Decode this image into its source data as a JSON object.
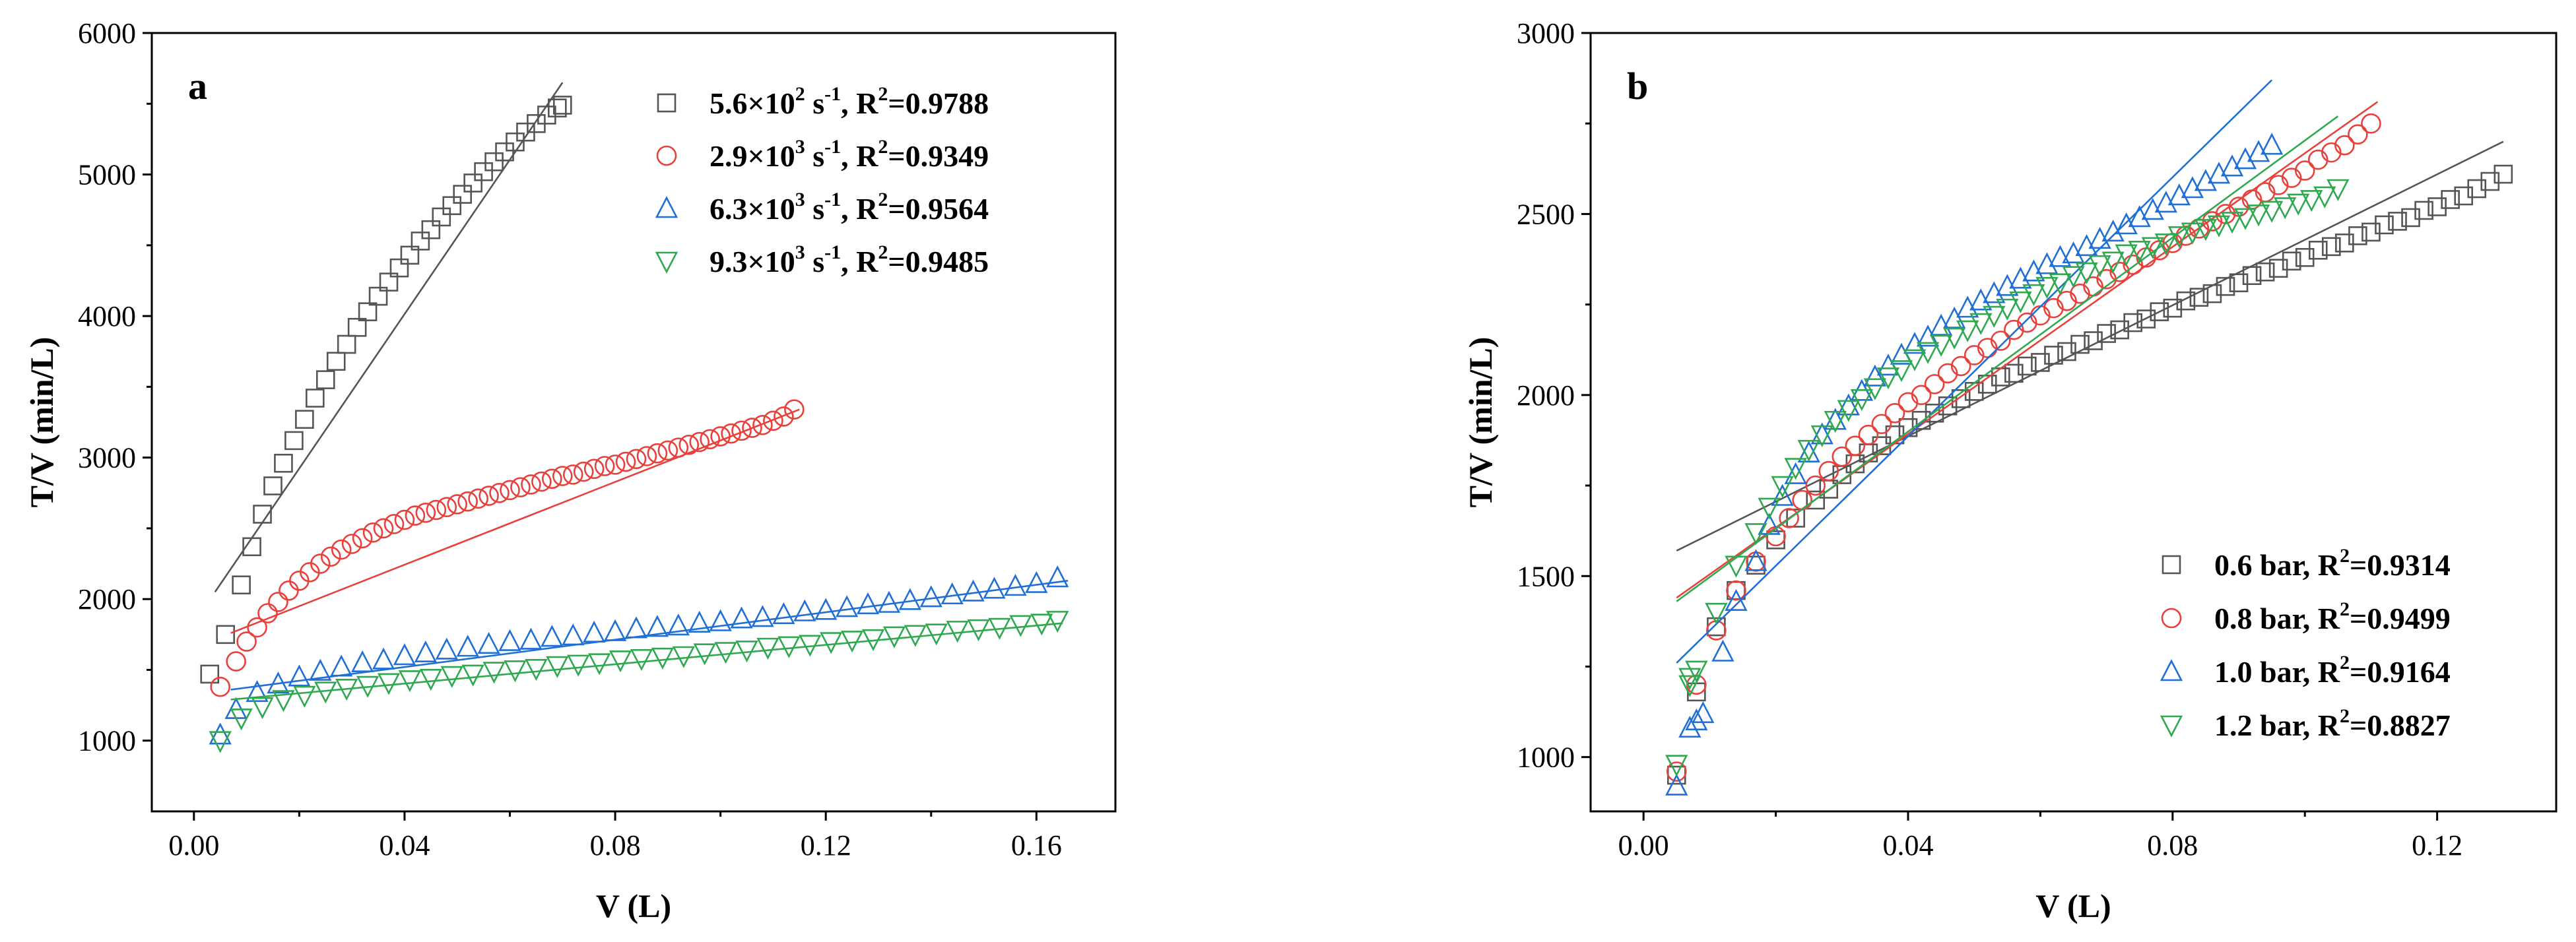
{
  "chart_data": [
    {
      "type": "scatter",
      "panel_label": "a",
      "xlabel": "V (L)",
      "ylabel": "T/V (min/L)",
      "xlim": [
        -0.008,
        0.175
      ],
      "ylim": [
        500,
        6000
      ],
      "xticks": [
        0.0,
        0.04,
        0.08,
        0.12,
        0.16
      ],
      "xtick_labels": [
        "0.00",
        "0.04",
        "0.08",
        "0.12",
        "0.16"
      ],
      "yticks": [
        1000,
        2000,
        3000,
        4000,
        5000,
        6000
      ],
      "ytick_labels": [
        "1000",
        "2000",
        "3000",
        "4000",
        "5000",
        "6000"
      ],
      "legend_position": "top-right",
      "series": [
        {
          "name": "5.6×10² s⁻¹, R²=0.9788",
          "legend": {
            "base": "5.6×10",
            "exp": "2",
            "unit": " s",
            "unit_exp": "-1",
            "r2": ", R",
            "r2_exp": "2",
            "value": "=0.9788"
          },
          "marker": "square",
          "color": "#555555",
          "x": [
            0.003,
            0.006,
            0.009,
            0.011,
            0.013,
            0.015,
            0.017,
            0.019,
            0.021,
            0.023,
            0.025,
            0.027,
            0.029,
            0.031,
            0.033,
            0.035,
            0.037,
            0.039,
            0.041,
            0.043,
            0.045,
            0.047,
            0.049,
            0.051,
            0.053,
            0.055,
            0.057,
            0.059,
            0.061,
            0.063,
            0.065,
            0.067,
            0.069,
            0.07
          ],
          "y": [
            1470,
            1750,
            2100,
            2370,
            2600,
            2800,
            2960,
            3120,
            3270,
            3420,
            3550,
            3680,
            3800,
            3920,
            4030,
            4140,
            4240,
            4340,
            4430,
            4530,
            4610,
            4700,
            4780,
            4860,
            4940,
            5020,
            5090,
            5160,
            5230,
            5300,
            5360,
            5420,
            5470,
            5490
          ],
          "fit": {
            "x": [
              0.004,
              0.07
            ],
            "y": [
              2050,
              5650
            ]
          }
        },
        {
          "name": "2.9×10³ s⁻¹, R²=0.9349",
          "legend": {
            "base": "2.9×10",
            "exp": "3",
            "unit": " s",
            "unit_exp": "-1",
            "r2": ", R",
            "r2_exp": "2",
            "value": "=0.9349"
          },
          "marker": "circle",
          "color": "#e8413c",
          "x": [
            0.005,
            0.008,
            0.01,
            0.012,
            0.014,
            0.016,
            0.018,
            0.02,
            0.022,
            0.024,
            0.026,
            0.028,
            0.03,
            0.032,
            0.034,
            0.036,
            0.038,
            0.04,
            0.042,
            0.044,
            0.046,
            0.048,
            0.05,
            0.052,
            0.054,
            0.056,
            0.058,
            0.06,
            0.062,
            0.064,
            0.066,
            0.068,
            0.07,
            0.072,
            0.074,
            0.076,
            0.078,
            0.08,
            0.082,
            0.084,
            0.086,
            0.088,
            0.09,
            0.092,
            0.094,
            0.096,
            0.098,
            0.1,
            0.102,
            0.104,
            0.106,
            0.108,
            0.11,
            0.112,
            0.114
          ],
          "y": [
            1380,
            1560,
            1700,
            1800,
            1900,
            1980,
            2060,
            2130,
            2190,
            2250,
            2300,
            2350,
            2390,
            2430,
            2470,
            2500,
            2530,
            2560,
            2590,
            2610,
            2630,
            2650,
            2670,
            2690,
            2710,
            2730,
            2750,
            2770,
            2790,
            2810,
            2830,
            2850,
            2870,
            2880,
            2900,
            2920,
            2940,
            2950,
            2970,
            2990,
            3010,
            3030,
            3050,
            3070,
            3090,
            3110,
            3130,
            3150,
            3170,
            3190,
            3210,
            3230,
            3260,
            3290,
            3340
          ],
          "fit": {
            "x": [
              0.007,
              0.115
            ],
            "y": [
              1760,
              3340
            ]
          }
        },
        {
          "name": "6.3×10³ s⁻¹, R²=0.9564",
          "legend": {
            "base": "6.3×10",
            "exp": "3",
            "unit": " s",
            "unit_exp": "-1",
            "r2": ", R",
            "r2_exp": "2",
            "value": "=0.9564"
          },
          "marker": "triangle-up",
          "color": "#1f6fd6",
          "x": [
            0.005,
            0.008,
            0.012,
            0.016,
            0.02,
            0.024,
            0.028,
            0.032,
            0.036,
            0.04,
            0.044,
            0.048,
            0.052,
            0.056,
            0.06,
            0.064,
            0.068,
            0.072,
            0.076,
            0.08,
            0.084,
            0.088,
            0.092,
            0.096,
            0.1,
            0.104,
            0.108,
            0.112,
            0.116,
            0.12,
            0.124,
            0.128,
            0.132,
            0.136,
            0.14,
            0.144,
            0.148,
            0.152,
            0.156,
            0.16,
            0.164
          ],
          "y": [
            1040,
            1220,
            1340,
            1400,
            1450,
            1490,
            1520,
            1550,
            1570,
            1600,
            1620,
            1640,
            1660,
            1680,
            1700,
            1710,
            1730,
            1740,
            1760,
            1770,
            1790,
            1800,
            1810,
            1830,
            1840,
            1860,
            1870,
            1890,
            1910,
            1920,
            1940,
            1960,
            1970,
            1990,
            2010,
            2030,
            2050,
            2070,
            2090,
            2110,
            2150
          ],
          "fit": {
            "x": [
              0.007,
              0.166
            ],
            "y": [
              1360,
              2130
            ]
          }
        },
        {
          "name": "9.3×10³ s⁻¹, R²=0.9485",
          "legend": {
            "base": "9.3×10",
            "exp": "3",
            "unit": " s",
            "unit_exp": "-1",
            "r2": ", R",
            "r2_exp": "2",
            "value": "=0.9485"
          },
          "marker": "triangle-down",
          "color": "#2fa84f",
          "x": [
            0.005,
            0.009,
            0.013,
            0.017,
            0.021,
            0.025,
            0.029,
            0.033,
            0.037,
            0.041,
            0.045,
            0.049,
            0.053,
            0.057,
            0.061,
            0.065,
            0.069,
            0.073,
            0.077,
            0.081,
            0.085,
            0.089,
            0.093,
            0.097,
            0.101,
            0.105,
            0.109,
            0.113,
            0.117,
            0.121,
            0.125,
            0.129,
            0.133,
            0.137,
            0.141,
            0.145,
            0.149,
            0.153,
            0.157,
            0.161,
            0.164
          ],
          "y": [
            1000,
            1160,
            1240,
            1290,
            1320,
            1350,
            1370,
            1390,
            1410,
            1430,
            1440,
            1460,
            1470,
            1490,
            1500,
            1510,
            1530,
            1540,
            1550,
            1570,
            1580,
            1590,
            1600,
            1620,
            1630,
            1640,
            1660,
            1670,
            1680,
            1700,
            1710,
            1720,
            1740,
            1750,
            1760,
            1780,
            1790,
            1800,
            1820,
            1830,
            1850
          ],
          "fit": {
            "x": [
              0.007,
              0.165
            ],
            "y": [
              1290,
              1830
            ]
          }
        }
      ]
    },
    {
      "type": "scatter",
      "panel_label": "b",
      "xlabel": "V (L)",
      "ylabel": "T/V (min/L)",
      "xlim": [
        -0.008,
        0.138
      ],
      "ylim": [
        850,
        3000
      ],
      "xticks": [
        0.0,
        0.04,
        0.08,
        0.12
      ],
      "xtick_labels": [
        "0.00",
        "0.04",
        "0.08",
        "0.12"
      ],
      "yticks": [
        1000,
        1500,
        2000,
        2500,
        3000
      ],
      "ytick_labels": [
        "1000",
        "1500",
        "2000",
        "2500",
        "3000"
      ],
      "legend_position": "bottom-right",
      "series": [
        {
          "name": "0.6 bar, R²=0.9314",
          "legend": {
            "base": "0.6 bar",
            "r2": ", R",
            "r2_exp": "2",
            "value": "=0.9314"
          },
          "marker": "square",
          "color": "#555555",
          "x": [
            0.005,
            0.008,
            0.011,
            0.014,
            0.017,
            0.02,
            0.023,
            0.026,
            0.028,
            0.03,
            0.032,
            0.034,
            0.036,
            0.038,
            0.04,
            0.042,
            0.044,
            0.046,
            0.048,
            0.05,
            0.052,
            0.054,
            0.056,
            0.058,
            0.06,
            0.062,
            0.064,
            0.066,
            0.068,
            0.07,
            0.072,
            0.074,
            0.076,
            0.078,
            0.08,
            0.082,
            0.084,
            0.086,
            0.088,
            0.09,
            0.092,
            0.094,
            0.096,
            0.098,
            0.1,
            0.102,
            0.104,
            0.106,
            0.108,
            0.11,
            0.112,
            0.114,
            0.116,
            0.118,
            0.12,
            0.122,
            0.124,
            0.126,
            0.128,
            0.13
          ],
          "y": [
            950,
            1180,
            1360,
            1460,
            1530,
            1600,
            1660,
            1710,
            1740,
            1780,
            1810,
            1840,
            1860,
            1890,
            1910,
            1930,
            1950,
            1970,
            1990,
            2010,
            2030,
            2050,
            2060,
            2080,
            2090,
            2110,
            2120,
            2140,
            2150,
            2170,
            2180,
            2200,
            2210,
            2230,
            2240,
            2260,
            2270,
            2280,
            2300,
            2310,
            2330,
            2340,
            2350,
            2370,
            2380,
            2400,
            2410,
            2420,
            2440,
            2450,
            2470,
            2480,
            2490,
            2510,
            2520,
            2540,
            2550,
            2570,
            2590,
            2610
          ],
          "fit": {
            "x": [
              0.005,
              0.13
            ],
            "y": [
              1570,
              2700
            ]
          }
        },
        {
          "name": "0.8 bar, R²=0.9499",
          "legend": {
            "base": "0.8 bar",
            "r2": ", R",
            "r2_exp": "2",
            "value": "=0.9499"
          },
          "marker": "circle",
          "color": "#e8413c",
          "x": [
            0.005,
            0.008,
            0.011,
            0.014,
            0.017,
            0.02,
            0.022,
            0.024,
            0.026,
            0.028,
            0.03,
            0.032,
            0.034,
            0.036,
            0.038,
            0.04,
            0.042,
            0.044,
            0.046,
            0.048,
            0.05,
            0.052,
            0.054,
            0.056,
            0.058,
            0.06,
            0.062,
            0.064,
            0.066,
            0.068,
            0.07,
            0.072,
            0.074,
            0.076,
            0.078,
            0.08,
            0.082,
            0.084,
            0.086,
            0.088,
            0.09,
            0.092,
            0.094,
            0.096,
            0.098,
            0.1,
            0.102,
            0.104,
            0.106,
            0.108,
            0.11
          ],
          "y": [
            960,
            1200,
            1350,
            1460,
            1540,
            1610,
            1660,
            1710,
            1750,
            1790,
            1830,
            1860,
            1890,
            1920,
            1950,
            1980,
            2000,
            2030,
            2060,
            2080,
            2110,
            2130,
            2150,
            2180,
            2200,
            2220,
            2240,
            2260,
            2280,
            2300,
            2320,
            2340,
            2360,
            2380,
            2400,
            2420,
            2440,
            2460,
            2480,
            2500,
            2520,
            2540,
            2560,
            2580,
            2600,
            2620,
            2650,
            2670,
            2690,
            2720,
            2750
          ],
          "fit": {
            "x": [
              0.005,
              0.111
            ],
            "y": [
              1440,
              2810
            ]
          }
        },
        {
          "name": "1.0 bar, R²=0.9164",
          "legend": {
            "base": "1.0 bar",
            "r2": ", R",
            "r2_exp": "2",
            "value": "=0.9164"
          },
          "marker": "triangle-up",
          "color": "#1f6fd6",
          "x": [
            0.005,
            0.007,
            0.008,
            0.009,
            0.012,
            0.014,
            0.017,
            0.019,
            0.021,
            0.023,
            0.025,
            0.027,
            0.029,
            0.031,
            0.033,
            0.035,
            0.037,
            0.039,
            0.041,
            0.043,
            0.045,
            0.047,
            0.049,
            0.051,
            0.053,
            0.055,
            0.057,
            0.059,
            0.061,
            0.063,
            0.065,
            0.067,
            0.069,
            0.071,
            0.073,
            0.075,
            0.077,
            0.079,
            0.081,
            0.083,
            0.085,
            0.087,
            0.089,
            0.091,
            0.093,
            0.095
          ],
          "y": [
            920,
            1080,
            1100,
            1120,
            1290,
            1430,
            1540,
            1640,
            1720,
            1780,
            1840,
            1890,
            1930,
            1970,
            2010,
            2050,
            2080,
            2110,
            2140,
            2160,
            2190,
            2210,
            2240,
            2260,
            2280,
            2300,
            2320,
            2340,
            2360,
            2380,
            2390,
            2410,
            2430,
            2450,
            2470,
            2490,
            2510,
            2530,
            2550,
            2570,
            2590,
            2610,
            2630,
            2650,
            2670,
            2690
          ],
          "fit": {
            "x": [
              0.005,
              0.095
            ],
            "y": [
              1260,
              2870
            ]
          }
        },
        {
          "name": "1.2 bar, R²=0.8827",
          "legend": {
            "base": "1.2 bar",
            "r2": ", R",
            "r2_exp": "2",
            "value": "=0.8827"
          },
          "marker": "triangle-down",
          "color": "#2fa84f",
          "x": [
            0.005,
            0.007,
            0.007,
            0.008,
            0.011,
            0.014,
            0.017,
            0.019,
            0.021,
            0.023,
            0.025,
            0.027,
            0.029,
            0.031,
            0.033,
            0.035,
            0.037,
            0.039,
            0.041,
            0.043,
            0.045,
            0.047,
            0.049,
            0.051,
            0.053,
            0.055,
            0.057,
            0.059,
            0.061,
            0.063,
            0.065,
            0.067,
            0.069,
            0.071,
            0.073,
            0.075,
            0.077,
            0.079,
            0.081,
            0.083,
            0.085,
            0.087,
            0.089,
            0.091,
            0.093,
            0.095,
            0.097,
            0.099,
            0.101,
            0.103,
            0.105
          ],
          "y": [
            980,
            1200,
            1220,
            1240,
            1400,
            1530,
            1620,
            1690,
            1750,
            1800,
            1850,
            1890,
            1930,
            1960,
            1990,
            2020,
            2050,
            2070,
            2100,
            2120,
            2140,
            2160,
            2180,
            2200,
            2220,
            2240,
            2260,
            2280,
            2300,
            2310,
            2330,
            2340,
            2360,
            2370,
            2390,
            2400,
            2410,
            2420,
            2440,
            2450,
            2460,
            2470,
            2480,
            2490,
            2500,
            2510,
            2520,
            2530,
            2540,
            2550,
            2570
          ],
          "fit": {
            "x": [
              0.005,
              0.105
            ],
            "y": [
              1430,
              2770
            ]
          }
        }
      ]
    }
  ]
}
